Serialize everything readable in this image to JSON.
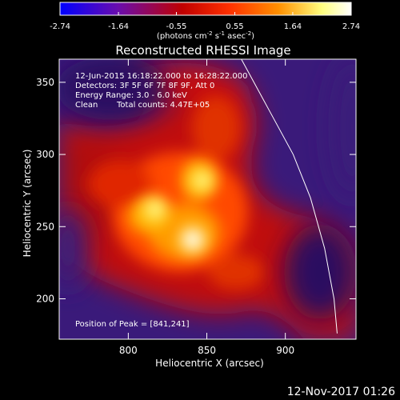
{
  "chart_data": {
    "type": "heatmap",
    "title": "Reconstructed RHESSI Image",
    "xlabel": "Heliocentric X (arcsec)",
    "ylabel": "Heliocentric Y (arcsec)",
    "xlim": [
      756,
      945
    ],
    "ylim": [
      172,
      366
    ],
    "x_ticks": [
      800,
      850,
      900
    ],
    "y_ticks": [
      200,
      250,
      300,
      350
    ],
    "colorbar": {
      "range": [
        -2.74,
        2.74
      ],
      "ticks": [
        "-2.74",
        "-1.64",
        "-0.55",
        "0.55",
        "1.64",
        "2.74"
      ],
      "colormap": [
        "#0000ff",
        "#6a0dad",
        "#c00000",
        "#ff3000",
        "#ff9000",
        "#ffff80",
        "#ffffff"
      ]
    },
    "annotations": {
      "time": "12-Jun-2015 16:18:22.000 to 16:28:22.000",
      "detectors": "Detectors: 3F 5F 6F 7F 8F 9F, Att 0",
      "energy": "Energy Range: 3.0 - 6.0 keV",
      "clean": "Clean",
      "counts": "Total counts: 4.47E+05",
      "peak": "Position of Peak = [841,241]"
    },
    "sources": [
      {
        "x": 841,
        "y": 241,
        "peak": 2.74
      },
      {
        "x": 817,
        "y": 262,
        "peak": 2.2
      },
      {
        "x": 847,
        "y": 282,
        "peak": 2.0
      }
    ],
    "limb_curve": [
      [
        872,
        366
      ],
      [
        890,
        330
      ],
      [
        905,
        300
      ],
      [
        916,
        270
      ],
      [
        925,
        235
      ],
      [
        931,
        200
      ],
      [
        933,
        176
      ]
    ]
  },
  "footer": {
    "date": "12-Nov-2017 01:26"
  }
}
